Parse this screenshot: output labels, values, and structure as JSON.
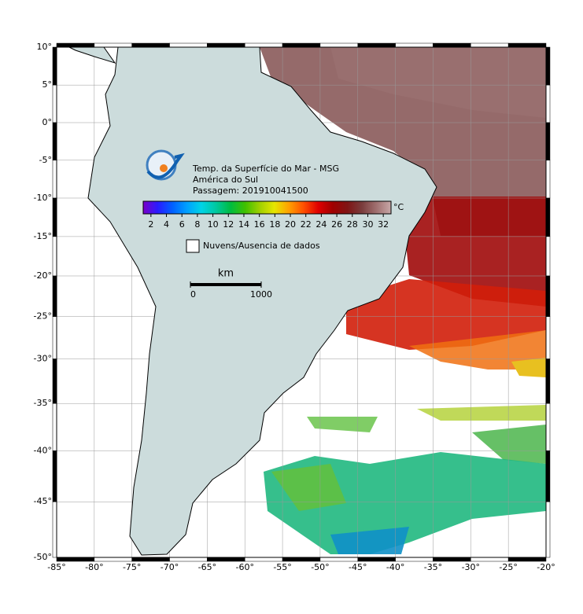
{
  "map": {
    "title_lines": [
      "Temp. da Superfície do Mar - MSG",
      "América do Sul",
      "Passagem: 201910041500"
    ],
    "colorbar": {
      "unit": "°C",
      "lim": [
        1,
        33
      ],
      "ticks": [
        2,
        4,
        6,
        8,
        10,
        12,
        14,
        16,
        18,
        20,
        22,
        24,
        26,
        28,
        30,
        32
      ],
      "colors": [
        "#7a00c8",
        "#2a1cff",
        "#0060ff",
        "#00a0ff",
        "#00d4e6",
        "#00c8a0",
        "#00bc40",
        "#40c000",
        "#a0d000",
        "#e6e600",
        "#ffa000",
        "#ff5000",
        "#e00000",
        "#a00000",
        "#801414",
        "#7a3c3c",
        "#a07070",
        "#c8a8a8"
      ]
    },
    "legend": "Nuvens/Ausencia de dados",
    "scale": {
      "unit": "km",
      "ticks": [
        0,
        1000
      ]
    },
    "lon_ticks": [
      {
        "value": -85,
        "label": "-85°"
      },
      {
        "value": -80,
        "label": "-80°"
      },
      {
        "value": -75,
        "label": "-75°"
      },
      {
        "value": -70,
        "label": "-70°"
      },
      {
        "value": -65,
        "label": "-65°"
      },
      {
        "value": -60,
        "label": "-60°"
      },
      {
        "value": -55,
        "label": "-55°"
      },
      {
        "value": -50,
        "label": "-50°"
      },
      {
        "value": -45,
        "label": "-45°"
      },
      {
        "value": -40,
        "label": "-40°"
      },
      {
        "value": -35,
        "label": "-35°"
      },
      {
        "value": -30,
        "label": "-30°"
      },
      {
        "value": -25,
        "label": "-25°"
      },
      {
        "value": -20,
        "label": "-20°"
      }
    ],
    "lat_ticks": [
      {
        "value": 10,
        "label": "10°"
      },
      {
        "value": 5,
        "label": "5°"
      },
      {
        "value": 0,
        "label": "0°"
      },
      {
        "value": -5,
        "label": "-5°"
      },
      {
        "value": -10,
        "label": "-10°"
      },
      {
        "value": -15,
        "label": "-15°"
      },
      {
        "value": -20,
        "label": "-20°"
      },
      {
        "value": -25,
        "label": "-25°"
      },
      {
        "value": -30,
        "label": "-30°"
      },
      {
        "value": -35,
        "label": "-35°"
      },
      {
        "value": -40,
        "label": "-40°"
      },
      {
        "value": -45,
        "label": "-45°"
      },
      {
        "value": -50,
        "label": "-50°"
      }
    ]
  }
}
